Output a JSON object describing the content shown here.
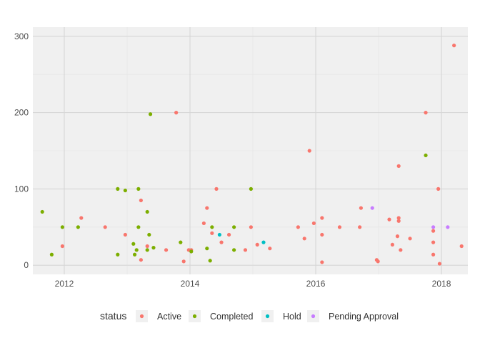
{
  "chart_data": {
    "type": "scatter",
    "x_axis": {
      "scale": "date",
      "ticks": [
        "2012",
        "2014",
        "2016",
        "2018"
      ],
      "range": [
        2011.5,
        2018.42
      ]
    },
    "y_axis": {
      "ticks": [
        "0",
        "100",
        "200",
        "300"
      ],
      "range": [
        -12,
        312
      ]
    },
    "grid": true,
    "legend": {
      "position": "bottom",
      "title": "status"
    },
    "series": [
      {
        "name": "Active",
        "color": "#F8766D",
        "points": [
          [
            2011.97,
            25
          ],
          [
            2012.27,
            62
          ],
          [
            2012.65,
            50
          ],
          [
            2012.97,
            40
          ],
          [
            2013.22,
            85
          ],
          [
            2013.22,
            7
          ],
          [
            2013.32,
            25
          ],
          [
            2013.62,
            20
          ],
          [
            2013.78,
            200
          ],
          [
            2013.9,
            5
          ],
          [
            2013.98,
            20
          ],
          [
            2014.02,
            20
          ],
          [
            2014.22,
            55
          ],
          [
            2014.27,
            75
          ],
          [
            2014.35,
            42
          ],
          [
            2014.42,
            100
          ],
          [
            2014.5,
            30
          ],
          [
            2014.62,
            40
          ],
          [
            2014.88,
            20
          ],
          [
            2014.97,
            50
          ],
          [
            2015.07,
            27
          ],
          [
            2015.27,
            22
          ],
          [
            2015.72,
            50
          ],
          [
            2015.82,
            35
          ],
          [
            2015.9,
            150
          ],
          [
            2015.97,
            55
          ],
          [
            2016.1,
            62
          ],
          [
            2016.1,
            40
          ],
          [
            2016.1,
            4
          ],
          [
            2016.38,
            50
          ],
          [
            2016.7,
            50
          ],
          [
            2016.72,
            75
          ],
          [
            2016.97,
            7
          ],
          [
            2016.99,
            5
          ],
          [
            2017.17,
            60
          ],
          [
            2017.22,
            27
          ],
          [
            2017.3,
            38
          ],
          [
            2017.32,
            130
          ],
          [
            2017.32,
            62
          ],
          [
            2017.32,
            58
          ],
          [
            2017.35,
            20
          ],
          [
            2017.5,
            35
          ],
          [
            2017.75,
            200
          ],
          [
            2017.87,
            45
          ],
          [
            2017.87,
            30
          ],
          [
            2017.87,
            14
          ],
          [
            2017.95,
            100
          ],
          [
            2017.97,
            2
          ],
          [
            2018.2,
            288
          ],
          [
            2018.32,
            25
          ]
        ]
      },
      {
        "name": "Completed",
        "color": "#7CAE00",
        "points": [
          [
            2011.65,
            70
          ],
          [
            2011.8,
            14
          ],
          [
            2011.97,
            50
          ],
          [
            2012.22,
            50
          ],
          [
            2012.85,
            100
          ],
          [
            2012.85,
            14
          ],
          [
            2012.97,
            98
          ],
          [
            2013.1,
            28
          ],
          [
            2013.12,
            14
          ],
          [
            2013.15,
            20
          ],
          [
            2013.18,
            100
          ],
          [
            2013.18,
            50
          ],
          [
            2013.32,
            70
          ],
          [
            2013.32,
            20
          ],
          [
            2013.35,
            40
          ],
          [
            2013.37,
            198
          ],
          [
            2013.42,
            23
          ],
          [
            2013.85,
            30
          ],
          [
            2014.02,
            18
          ],
          [
            2014.27,
            22
          ],
          [
            2014.32,
            6
          ],
          [
            2014.35,
            50
          ],
          [
            2014.7,
            50
          ],
          [
            2014.7,
            20
          ],
          [
            2014.97,
            100
          ],
          [
            2017.75,
            144
          ]
        ]
      },
      {
        "name": "Hold",
        "color": "#00BFC4",
        "points": [
          [
            2014.47,
            40
          ],
          [
            2015.17,
            30
          ]
        ]
      },
      {
        "name": "Pending Approval",
        "color": "#C77CFF",
        "points": [
          [
            2016.9,
            75
          ],
          [
            2017.87,
            50
          ],
          [
            2018.1,
            50
          ]
        ]
      }
    ]
  }
}
